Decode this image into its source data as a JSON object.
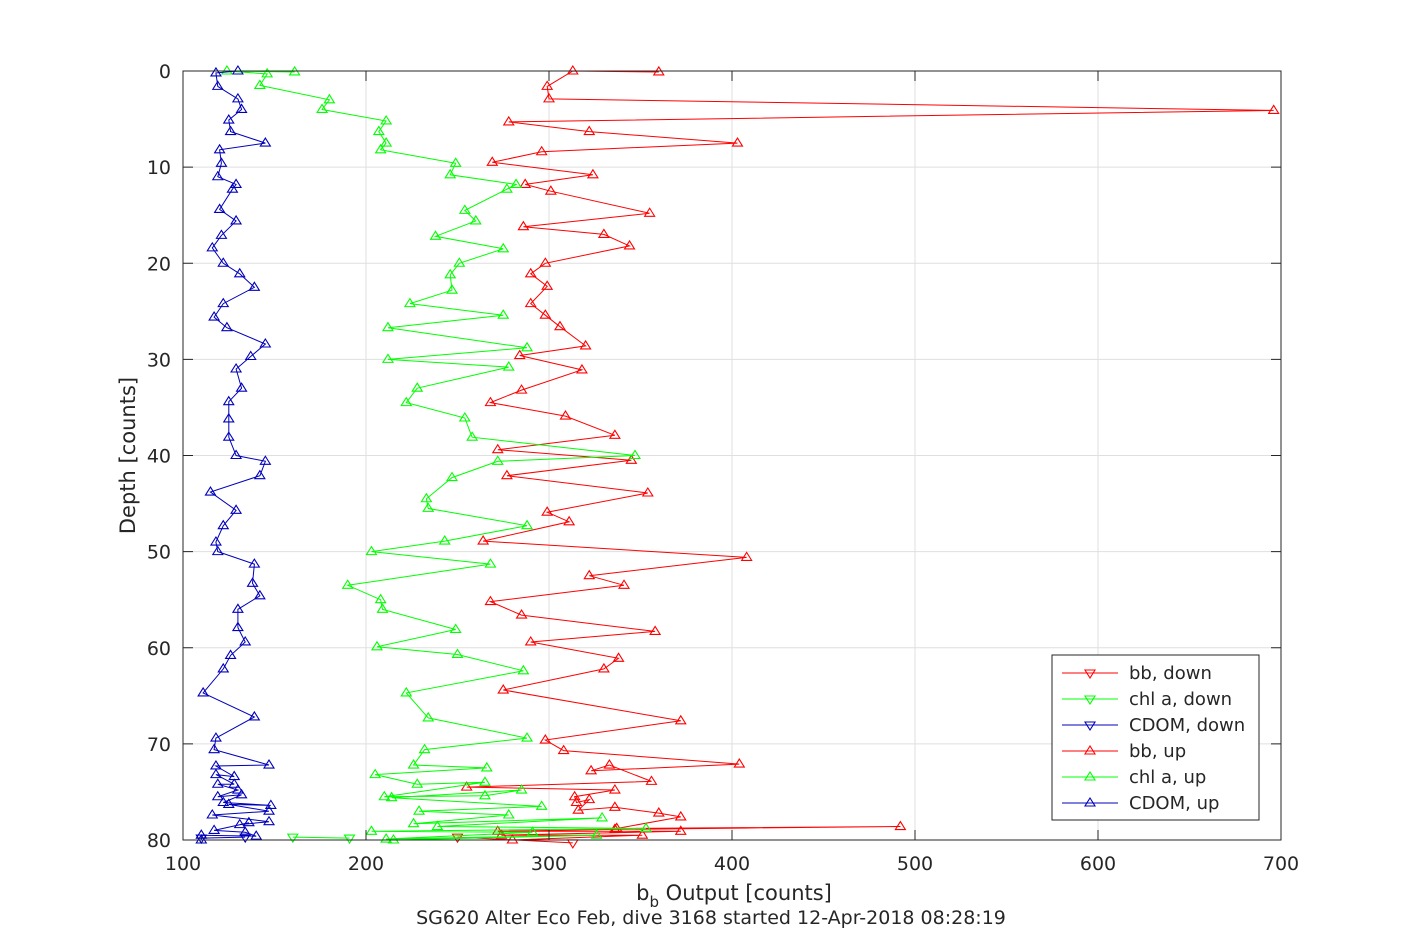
{
  "chart_data": {
    "type": "line",
    "xlabel_main": "b",
    "xlabel_sub": "b",
    "xlabel_rest": " Output [counts]",
    "ylabel": "Depth [counts]",
    "caption": "SG620 Alter Eco Feb, dive 3168 started 12-Apr-2018 08:28:19",
    "xlim": [
      100,
      700
    ],
    "ylim": [
      0,
      80
    ],
    "y_reversed": true,
    "grid": true,
    "legend_position": "bottom-right",
    "x_ticks": [
      100,
      200,
      300,
      400,
      500,
      600,
      700
    ],
    "x_tick_labels": [
      "100",
      "200",
      "300",
      "400",
      "500",
      "600",
      "700"
    ],
    "y_ticks": [
      0,
      10,
      20,
      30,
      40,
      50,
      60,
      70,
      80
    ],
    "y_tick_labels": [
      "0",
      "10",
      "20",
      "30",
      "40",
      "50",
      "60",
      "70",
      "80"
    ],
    "series": [
      {
        "name": "bb, down",
        "color": "#ff0000",
        "marker": "triangle-down",
        "points": [
          [
            313,
            80.3
          ],
          [
            250,
            79.7
          ]
        ]
      },
      {
        "name": "chl a, down",
        "color": "#00ff00",
        "marker": "triangle-down",
        "points": [
          [
            191,
            79.8
          ],
          [
            160,
            79.7
          ]
        ]
      },
      {
        "name": "CDOM, down",
        "color": "#0000bb",
        "marker": "triangle-down",
        "points": [
          [
            134,
            79.7
          ],
          [
            110,
            79.8
          ]
        ]
      },
      {
        "name": "bb, up",
        "color": "#ff0000",
        "marker": "triangle-up",
        "points": [
          [
            360,
            0.1
          ],
          [
            313,
            0
          ],
          [
            299,
            1.6
          ],
          [
            300,
            2.9
          ],
          [
            696,
            4.1
          ],
          [
            278,
            5.3
          ],
          [
            322,
            6.3
          ],
          [
            403,
            7.5
          ],
          [
            296,
            8.4
          ],
          [
            269,
            9.5
          ],
          [
            324,
            10.8
          ],
          [
            287,
            11.8
          ],
          [
            301,
            12.5
          ],
          [
            355,
            14.8
          ],
          [
            286,
            16.2
          ],
          [
            330,
            17
          ],
          [
            344,
            18.2
          ],
          [
            298,
            20
          ],
          [
            290,
            21.1
          ],
          [
            299,
            22.4
          ],
          [
            290,
            24.2
          ],
          [
            298,
            25.4
          ],
          [
            306,
            26.6
          ],
          [
            320,
            28.6
          ],
          [
            284,
            29.6
          ],
          [
            318,
            31.1
          ],
          [
            285,
            33.2
          ],
          [
            268,
            34.5
          ],
          [
            309,
            35.9
          ],
          [
            336,
            37.9
          ],
          [
            272,
            39.4
          ],
          [
            345,
            40.5
          ],
          [
            277,
            42.1
          ],
          [
            354,
            43.9
          ],
          [
            299,
            45.9
          ],
          [
            311,
            46.9
          ],
          [
            264,
            48.9
          ],
          [
            408,
            50.6
          ],
          [
            322,
            52.5
          ],
          [
            341,
            53.5
          ],
          [
            268,
            55.2
          ],
          [
            285,
            56.6
          ],
          [
            358,
            58.3
          ],
          [
            290,
            59.4
          ],
          [
            338,
            61.1
          ],
          [
            330,
            62.2
          ],
          [
            275,
            64.4
          ],
          [
            372,
            67.6
          ],
          [
            298,
            69.6
          ],
          [
            308,
            70.7
          ],
          [
            404,
            72.1
          ],
          [
            323,
            72.8
          ],
          [
            333,
            72.2
          ],
          [
            356,
            73.9
          ],
          [
            255,
            74.5
          ],
          [
            336,
            74.8
          ],
          [
            314,
            75.5
          ],
          [
            315,
            76.1
          ],
          [
            322,
            75.8
          ],
          [
            316,
            76.9
          ],
          [
            336,
            76.6
          ],
          [
            360,
            77.2
          ],
          [
            372,
            77.6
          ],
          [
            337,
            78.8
          ],
          [
            492,
            78.6
          ],
          [
            336,
            78.9
          ],
          [
            272,
            79.1
          ],
          [
            372,
            79.1
          ],
          [
            274,
            79.5
          ],
          [
            351,
            79.5
          ],
          [
            280,
            80
          ]
        ]
      },
      {
        "name": "chl a, up",
        "color": "#00ff00",
        "marker": "triangle-up",
        "points": [
          [
            161,
            0.1
          ],
          [
            124,
            0
          ],
          [
            146,
            0.3
          ],
          [
            142,
            1.5
          ],
          [
            180,
            3.0
          ],
          [
            176,
            4.0
          ],
          [
            211,
            5.2
          ],
          [
            207,
            6.3
          ],
          [
            211,
            7.5
          ],
          [
            208,
            8.2
          ],
          [
            249,
            9.6
          ],
          [
            246,
            10.8
          ],
          [
            282,
            11.8
          ],
          [
            277,
            12.3
          ],
          [
            254,
            14.5
          ],
          [
            260,
            15.6
          ],
          [
            238,
            17.2
          ],
          [
            275,
            18.5
          ],
          [
            251,
            20.0
          ],
          [
            246,
            21.2
          ],
          [
            247,
            22.8
          ],
          [
            224,
            24.2
          ],
          [
            275,
            25.4
          ],
          [
            212,
            26.7
          ],
          [
            288,
            28.8
          ],
          [
            212,
            30.0
          ],
          [
            278,
            30.8
          ],
          [
            228,
            33.0
          ],
          [
            222,
            34.5
          ],
          [
            254,
            36.1
          ],
          [
            258,
            38.1
          ],
          [
            347,
            40.0
          ],
          [
            272,
            40.6
          ],
          [
            247,
            42.3
          ],
          [
            233,
            44.5
          ],
          [
            234,
            45.5
          ],
          [
            288,
            47.3
          ],
          [
            243,
            48.9
          ],
          [
            203,
            50.0
          ],
          [
            268,
            51.3
          ],
          [
            190,
            53.5
          ],
          [
            208,
            55.0
          ],
          [
            209,
            56.0
          ],
          [
            249,
            58.1
          ],
          [
            206,
            59.9
          ],
          [
            250,
            60.7
          ],
          [
            286,
            62.4
          ],
          [
            222,
            64.7
          ],
          [
            234,
            67.3
          ],
          [
            288,
            69.4
          ],
          [
            232,
            70.6
          ],
          [
            226,
            72.2
          ],
          [
            266,
            72.5
          ],
          [
            205,
            73.2
          ],
          [
            228,
            74.2
          ],
          [
            265,
            74.0
          ],
          [
            210,
            75.5
          ],
          [
            265,
            75.4
          ],
          [
            285,
            74.8
          ],
          [
            214,
            75.6
          ],
          [
            296,
            76.5
          ],
          [
            229,
            77.0
          ],
          [
            278,
            77.4
          ],
          [
            226,
            78.3
          ],
          [
            329,
            77.7
          ],
          [
            239,
            78.6
          ],
          [
            353,
            78.8
          ],
          [
            203,
            79.1
          ],
          [
            291,
            79.2
          ],
          [
            211,
            79.9
          ],
          [
            326,
            79.5
          ],
          [
            215,
            80.0
          ]
        ]
      },
      {
        "name": "CDOM, up",
        "color": "#0000bb",
        "marker": "triangle-up",
        "points": [
          [
            130,
            0
          ],
          [
            118,
            0.2
          ],
          [
            119,
            1.6
          ],
          [
            130,
            2.9
          ],
          [
            132,
            4.0
          ],
          [
            125,
            5.1
          ],
          [
            126,
            6.3
          ],
          [
            145,
            7.5
          ],
          [
            120,
            8.2
          ],
          [
            121,
            9.6
          ],
          [
            119,
            11.0
          ],
          [
            129,
            11.8
          ],
          [
            127,
            12.3
          ],
          [
            120,
            14.4
          ],
          [
            129,
            15.6
          ],
          [
            121,
            17.1
          ],
          [
            116,
            18.4
          ],
          [
            122,
            20.0
          ],
          [
            131,
            21.1
          ],
          [
            139,
            22.5
          ],
          [
            122,
            24.2
          ],
          [
            117,
            25.6
          ],
          [
            124,
            26.7
          ],
          [
            145,
            28.4
          ],
          [
            137,
            29.7
          ],
          [
            129,
            31.0
          ],
          [
            132,
            33.0
          ],
          [
            125,
            34.4
          ],
          [
            125,
            36.2
          ],
          [
            125,
            38.1
          ],
          [
            129,
            40.0
          ],
          [
            145,
            40.6
          ],
          [
            142,
            42.1
          ],
          [
            115,
            43.8
          ],
          [
            129,
            45.7
          ],
          [
            122,
            47.3
          ],
          [
            118,
            49.0
          ],
          [
            119,
            50.0
          ],
          [
            139,
            51.3
          ],
          [
            138,
            53.3
          ],
          [
            142,
            54.6
          ],
          [
            130,
            56.0
          ],
          [
            130,
            57.9
          ],
          [
            134,
            59.4
          ],
          [
            126,
            60.8
          ],
          [
            122,
            62.2
          ],
          [
            111,
            64.7
          ],
          [
            139,
            67.2
          ],
          [
            118,
            69.4
          ],
          [
            117,
            70.6
          ],
          [
            147,
            72.2
          ],
          [
            118,
            72.3
          ],
          [
            128,
            73.4
          ],
          [
            118,
            73.2
          ],
          [
            128,
            74.2
          ],
          [
            119,
            74.2
          ],
          [
            130,
            74.8
          ],
          [
            119,
            75.5
          ],
          [
            132,
            75.3
          ],
          [
            122,
            76.1
          ],
          [
            148,
            76.4
          ],
          [
            125,
            76.3
          ],
          [
            147,
            77.0
          ],
          [
            116,
            77.4
          ],
          [
            147,
            78.1
          ],
          [
            131,
            78.4
          ],
          [
            136,
            78.2
          ],
          [
            117,
            79.0
          ],
          [
            134,
            79.2
          ],
          [
            140,
            79.6
          ],
          [
            110,
            79.5
          ],
          [
            110,
            80.0
          ]
        ]
      }
    ]
  }
}
